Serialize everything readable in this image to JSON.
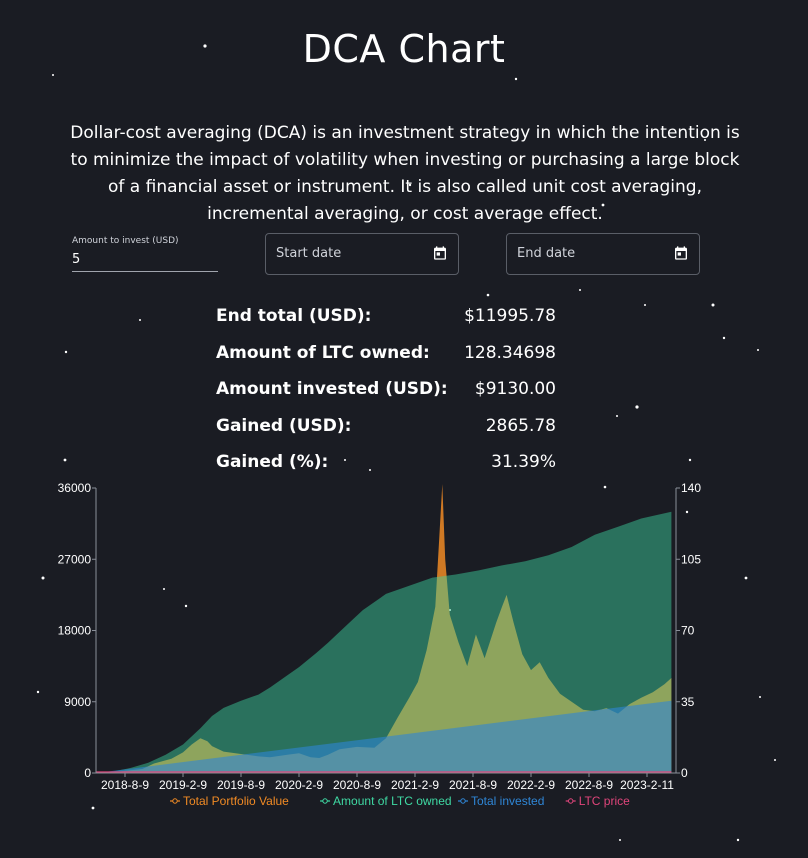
{
  "page": {
    "title": "DCA Chart",
    "description": "Dollar-cost averaging (DCA) is an investment strategy in which the intention is to minimize the impact of volatility when investing or purchasing a large block of a financial asset or instrument. It is also called unit cost averaging, incremental averaging, or cost average effect."
  },
  "form": {
    "amount_label": "Amount to invest (USD)",
    "amount_value": "5",
    "start_placeholder": "Start date",
    "end_placeholder": "End date"
  },
  "stats": [
    {
      "label": "End total (USD):",
      "value": "$11995.78"
    },
    {
      "label": "Amount of LTC owned:",
      "value": "128.34698"
    },
    {
      "label": "Amount invested (USD):",
      "value": "$9130.00"
    },
    {
      "label": "Gained (USD):",
      "value": "2865.78"
    },
    {
      "label": "Gained (%):",
      "value": "31.39%"
    }
  ],
  "colors": {
    "background": "#1a1c23",
    "portfolio": "#f08a24",
    "ltc_owned": "#3fd9a3",
    "invested": "#2f86d6",
    "ltc_price": "#e0457b"
  },
  "chart_data": {
    "type": "area",
    "left_axis": {
      "min": 0,
      "max": 36000,
      "ticks": [
        "0",
        "9000",
        "18000",
        "27000",
        "36000"
      ]
    },
    "right_axis": {
      "min": 0,
      "max": 140,
      "ticks": [
        "0",
        "35",
        "70",
        "105",
        "140"
      ]
    },
    "x_ticks": [
      "2018-8-9",
      "2019-2-9",
      "2019-8-9",
      "2020-2-9",
      "2020-8-9",
      "2021-2-9",
      "2021-8-9",
      "2022-2-9",
      "2022-8-9",
      "2023-2-11"
    ],
    "x_tick_pos": [
      0.5,
      1.5,
      2.5,
      3.5,
      4.5,
      5.5,
      6.5,
      7.5,
      8.5,
      9.5
    ],
    "legend_position": "bottom",
    "series": [
      {
        "name": "Total Portfolio Value",
        "axis": "left",
        "color": "#f08a24",
        "points": [
          [
            0,
            0
          ],
          [
            0.3,
            120
          ],
          [
            0.8,
            500
          ],
          [
            1.0,
            1200
          ],
          [
            1.3,
            1800
          ],
          [
            1.5,
            2600
          ],
          [
            1.65,
            3600
          ],
          [
            1.8,
            4400
          ],
          [
            1.92,
            4000
          ],
          [
            2.0,
            3400
          ],
          [
            2.2,
            2700
          ],
          [
            2.5,
            2400
          ],
          [
            2.8,
            2100
          ],
          [
            3.0,
            2000
          ],
          [
            3.3,
            2300
          ],
          [
            3.5,
            2500
          ],
          [
            3.7,
            2000
          ],
          [
            3.85,
            1900
          ],
          [
            4.0,
            2300
          ],
          [
            4.2,
            3000
          ],
          [
            4.5,
            3300
          ],
          [
            4.8,
            3200
          ],
          [
            5.0,
            4400
          ],
          [
            5.2,
            7000
          ],
          [
            5.4,
            9500
          ],
          [
            5.55,
            11500
          ],
          [
            5.7,
            15500
          ],
          [
            5.85,
            21000
          ],
          [
            5.92,
            30000
          ],
          [
            5.97,
            36500
          ],
          [
            6.02,
            27000
          ],
          [
            6.1,
            20000
          ],
          [
            6.25,
            16500
          ],
          [
            6.4,
            13500
          ],
          [
            6.55,
            17500
          ],
          [
            6.7,
            14500
          ],
          [
            6.9,
            19000
          ],
          [
            7.0,
            21000
          ],
          [
            7.08,
            22500
          ],
          [
            7.2,
            19000
          ],
          [
            7.35,
            15000
          ],
          [
            7.5,
            13000
          ],
          [
            7.65,
            14000
          ],
          [
            7.8,
            12000
          ],
          [
            8.0,
            10000
          ],
          [
            8.2,
            9000
          ],
          [
            8.4,
            8000
          ],
          [
            8.6,
            7800
          ],
          [
            8.8,
            8200
          ],
          [
            9.0,
            7500
          ],
          [
            9.2,
            8700
          ],
          [
            9.4,
            9500
          ],
          [
            9.6,
            10200
          ],
          [
            9.8,
            11200
          ],
          [
            9.92,
            11995
          ]
        ]
      },
      {
        "name": "Amount of LTC owned",
        "axis": "right",
        "color": "#3fd9a3",
        "points": [
          [
            0,
            0
          ],
          [
            0.3,
            0.8
          ],
          [
            0.6,
            2.5
          ],
          [
            0.9,
            5
          ],
          [
            1.2,
            9
          ],
          [
            1.5,
            14
          ],
          [
            1.8,
            22
          ],
          [
            2.0,
            28
          ],
          [
            2.2,
            32
          ],
          [
            2.5,
            35.5
          ],
          [
            2.8,
            38.5
          ],
          [
            3.0,
            42
          ],
          [
            3.3,
            48
          ],
          [
            3.5,
            52
          ],
          [
            3.8,
            59
          ],
          [
            4.0,
            64
          ],
          [
            4.3,
            72
          ],
          [
            4.6,
            80
          ],
          [
            5.0,
            88
          ],
          [
            5.4,
            92
          ],
          [
            5.8,
            96
          ],
          [
            6.2,
            97.5
          ],
          [
            6.6,
            99.5
          ],
          [
            7.0,
            102
          ],
          [
            7.4,
            104
          ],
          [
            7.8,
            107
          ],
          [
            8.2,
            111
          ],
          [
            8.6,
            117
          ],
          [
            9.0,
            121
          ],
          [
            9.4,
            125
          ],
          [
            9.92,
            128.35
          ]
        ]
      },
      {
        "name": "Total invested",
        "axis": "left",
        "color": "#2f86d6",
        "points": [
          [
            0,
            0
          ],
          [
            9.92,
            9130
          ]
        ]
      },
      {
        "name": "LTC price",
        "axis": "right",
        "color": "#e0457b",
        "points": [
          [
            0,
            0.5
          ],
          [
            9.92,
            0.5
          ]
        ]
      }
    ]
  }
}
